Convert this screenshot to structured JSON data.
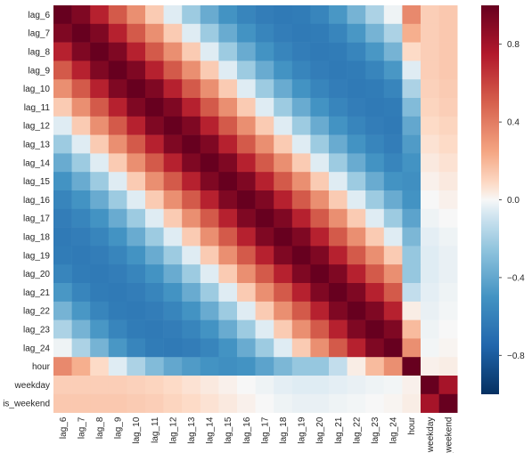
{
  "chart_data": {
    "type": "heatmap",
    "title": "",
    "xlabel": "",
    "ylabel": "",
    "colormap": "RdBu_r",
    "vmin": -1,
    "vmax": 1,
    "colors": {
      "min": "#053061",
      "mid": "#f7f7f7",
      "max": "#67001f"
    },
    "labels": [
      "lag_6",
      "lag_7",
      "lag_8",
      "lag_9",
      "lag_10",
      "lag_11",
      "lag_12",
      "lag_13",
      "lag_14",
      "lag_15",
      "lag_16",
      "lag_17",
      "lag_18",
      "lag_19",
      "lag_20",
      "lag_21",
      "lag_22",
      "lag_23",
      "lag_24",
      "hour",
      "weekday",
      "is_weekend"
    ],
    "colorbar_ticks": [
      {
        "value": 0.8,
        "label": "0.8"
      },
      {
        "value": 0.4,
        "label": "0.4"
      },
      {
        "value": 0.0,
        "label": "0.0"
      },
      {
        "value": -0.4,
        "label": "−0.4"
      },
      {
        "value": -0.8,
        "label": "−0.8"
      }
    ],
    "matrix": [
      [
        1.0,
        0.92,
        0.72,
        0.52,
        0.33,
        0.13,
        -0.05,
        -0.22,
        -0.38,
        -0.5,
        -0.58,
        -0.62,
        -0.64,
        -0.63,
        -0.58,
        -0.48,
        -0.34,
        -0.18,
        -0.02,
        0.35,
        0.12,
        0.14
      ],
      [
        0.92,
        1.0,
        0.92,
        0.72,
        0.52,
        0.33,
        0.13,
        -0.05,
        -0.22,
        -0.38,
        -0.5,
        -0.58,
        -0.62,
        -0.64,
        -0.63,
        -0.58,
        -0.48,
        -0.34,
        -0.18,
        0.22,
        0.12,
        0.14
      ],
      [
        0.72,
        0.92,
        1.0,
        0.92,
        0.72,
        0.52,
        0.33,
        0.13,
        -0.05,
        -0.22,
        -0.38,
        -0.5,
        -0.58,
        -0.62,
        -0.64,
        -0.63,
        -0.58,
        -0.48,
        -0.34,
        0.08,
        0.12,
        0.14
      ],
      [
        0.52,
        0.72,
        0.92,
        1.0,
        0.92,
        0.72,
        0.52,
        0.33,
        0.13,
        -0.05,
        -0.22,
        -0.38,
        -0.5,
        -0.58,
        -0.62,
        -0.64,
        -0.63,
        -0.58,
        -0.48,
        -0.05,
        0.12,
        0.14
      ],
      [
        0.33,
        0.52,
        0.72,
        0.92,
        1.0,
        0.92,
        0.72,
        0.52,
        0.33,
        0.13,
        -0.05,
        -0.22,
        -0.38,
        -0.5,
        -0.58,
        -0.62,
        -0.64,
        -0.63,
        -0.58,
        -0.18,
        0.11,
        0.13
      ],
      [
        0.13,
        0.33,
        0.52,
        0.72,
        0.92,
        1.0,
        0.92,
        0.72,
        0.52,
        0.33,
        0.13,
        -0.05,
        -0.22,
        -0.38,
        -0.5,
        -0.58,
        -0.62,
        -0.64,
        -0.63,
        -0.3,
        0.1,
        0.12
      ],
      [
        -0.05,
        0.13,
        0.33,
        0.52,
        0.72,
        0.92,
        1.0,
        0.92,
        0.72,
        0.52,
        0.33,
        0.13,
        -0.05,
        -0.22,
        -0.38,
        -0.5,
        -0.58,
        -0.62,
        -0.64,
        -0.4,
        0.08,
        0.1
      ],
      [
        -0.22,
        -0.05,
        0.13,
        0.33,
        0.52,
        0.72,
        0.92,
        1.0,
        0.92,
        0.72,
        0.52,
        0.33,
        0.13,
        -0.05,
        -0.22,
        -0.38,
        -0.5,
        -0.58,
        -0.62,
        -0.46,
        0.06,
        0.08
      ],
      [
        -0.38,
        -0.22,
        -0.05,
        0.13,
        0.33,
        0.52,
        0.72,
        0.92,
        1.0,
        0.92,
        0.72,
        0.52,
        0.33,
        0.13,
        -0.05,
        -0.22,
        -0.38,
        -0.5,
        -0.58,
        -0.5,
        0.04,
        0.06
      ],
      [
        -0.5,
        -0.38,
        -0.22,
        -0.05,
        0.13,
        0.33,
        0.52,
        0.72,
        0.92,
        1.0,
        0.92,
        0.72,
        0.52,
        0.33,
        0.13,
        -0.05,
        -0.22,
        -0.38,
        -0.5,
        -0.52,
        0.02,
        0.04
      ],
      [
        -0.58,
        -0.5,
        -0.38,
        -0.22,
        -0.05,
        0.13,
        0.33,
        0.52,
        0.72,
        0.92,
        1.0,
        0.92,
        0.72,
        0.52,
        0.33,
        0.13,
        -0.05,
        -0.22,
        -0.38,
        -0.5,
        0.0,
        0.02
      ],
      [
        -0.62,
        -0.58,
        -0.5,
        -0.38,
        -0.22,
        -0.05,
        0.13,
        0.33,
        0.52,
        0.72,
        0.92,
        1.0,
        0.92,
        0.72,
        0.52,
        0.33,
        0.13,
        -0.05,
        -0.22,
        -0.42,
        -0.02,
        0.0
      ],
      [
        -0.64,
        -0.62,
        -0.58,
        -0.5,
        -0.38,
        -0.22,
        -0.05,
        0.13,
        0.33,
        0.52,
        0.72,
        0.92,
        1.0,
        0.92,
        0.72,
        0.52,
        0.33,
        0.13,
        -0.05,
        -0.32,
        -0.04,
        -0.02
      ],
      [
        -0.63,
        -0.64,
        -0.62,
        -0.58,
        -0.5,
        -0.38,
        -0.22,
        -0.05,
        0.13,
        0.33,
        0.52,
        0.72,
        0.92,
        1.0,
        0.92,
        0.72,
        0.52,
        0.33,
        0.13,
        -0.24,
        -0.05,
        -0.03
      ],
      [
        -0.58,
        -0.63,
        -0.64,
        -0.62,
        -0.58,
        -0.5,
        -0.38,
        -0.22,
        -0.05,
        0.13,
        0.33,
        0.52,
        0.72,
        0.92,
        1.0,
        0.92,
        0.72,
        0.52,
        0.33,
        -0.24,
        -0.05,
        -0.03
      ],
      [
        -0.48,
        -0.58,
        -0.63,
        -0.64,
        -0.62,
        -0.58,
        -0.5,
        -0.38,
        -0.22,
        -0.05,
        0.13,
        0.33,
        0.52,
        0.72,
        0.92,
        1.0,
        0.92,
        0.72,
        0.52,
        -0.12,
        -0.04,
        -0.02
      ],
      [
        -0.34,
        -0.48,
        -0.58,
        -0.63,
        -0.64,
        -0.62,
        -0.58,
        -0.5,
        -0.38,
        -0.22,
        -0.05,
        0.13,
        0.33,
        0.52,
        0.72,
        0.92,
        1.0,
        0.92,
        0.72,
        0.03,
        -0.03,
        -0.01
      ],
      [
        -0.18,
        -0.34,
        -0.48,
        -0.58,
        -0.63,
        -0.64,
        -0.62,
        -0.58,
        -0.5,
        -0.38,
        -0.22,
        -0.05,
        0.13,
        0.33,
        0.52,
        0.72,
        0.92,
        1.0,
        0.92,
        0.18,
        -0.02,
        0.0
      ],
      [
        -0.02,
        -0.18,
        -0.34,
        -0.48,
        -0.58,
        -0.63,
        -0.64,
        -0.62,
        -0.58,
        -0.5,
        -0.38,
        -0.22,
        -0.05,
        0.13,
        0.33,
        0.52,
        0.72,
        0.92,
        1.0,
        0.33,
        -0.01,
        0.01
      ],
      [
        0.35,
        0.22,
        0.08,
        -0.05,
        -0.18,
        -0.3,
        -0.4,
        -0.46,
        -0.5,
        -0.52,
        -0.5,
        -0.42,
        -0.32,
        -0.24,
        -0.24,
        -0.12,
        0.03,
        0.18,
        0.33,
        1.0,
        0.02,
        0.03
      ],
      [
        0.12,
        0.12,
        0.12,
        0.12,
        0.11,
        0.1,
        0.08,
        0.06,
        0.04,
        0.02,
        0.0,
        -0.02,
        -0.04,
        -0.05,
        -0.05,
        -0.04,
        -0.03,
        -0.02,
        -0.01,
        0.02,
        1.0,
        0.79
      ],
      [
        0.14,
        0.14,
        0.14,
        0.14,
        0.13,
        0.12,
        0.1,
        0.08,
        0.06,
        0.04,
        0.02,
        0.0,
        -0.02,
        -0.03,
        -0.03,
        -0.02,
        -0.01,
        0.0,
        0.01,
        0.03,
        0.79,
        1.0
      ]
    ]
  }
}
